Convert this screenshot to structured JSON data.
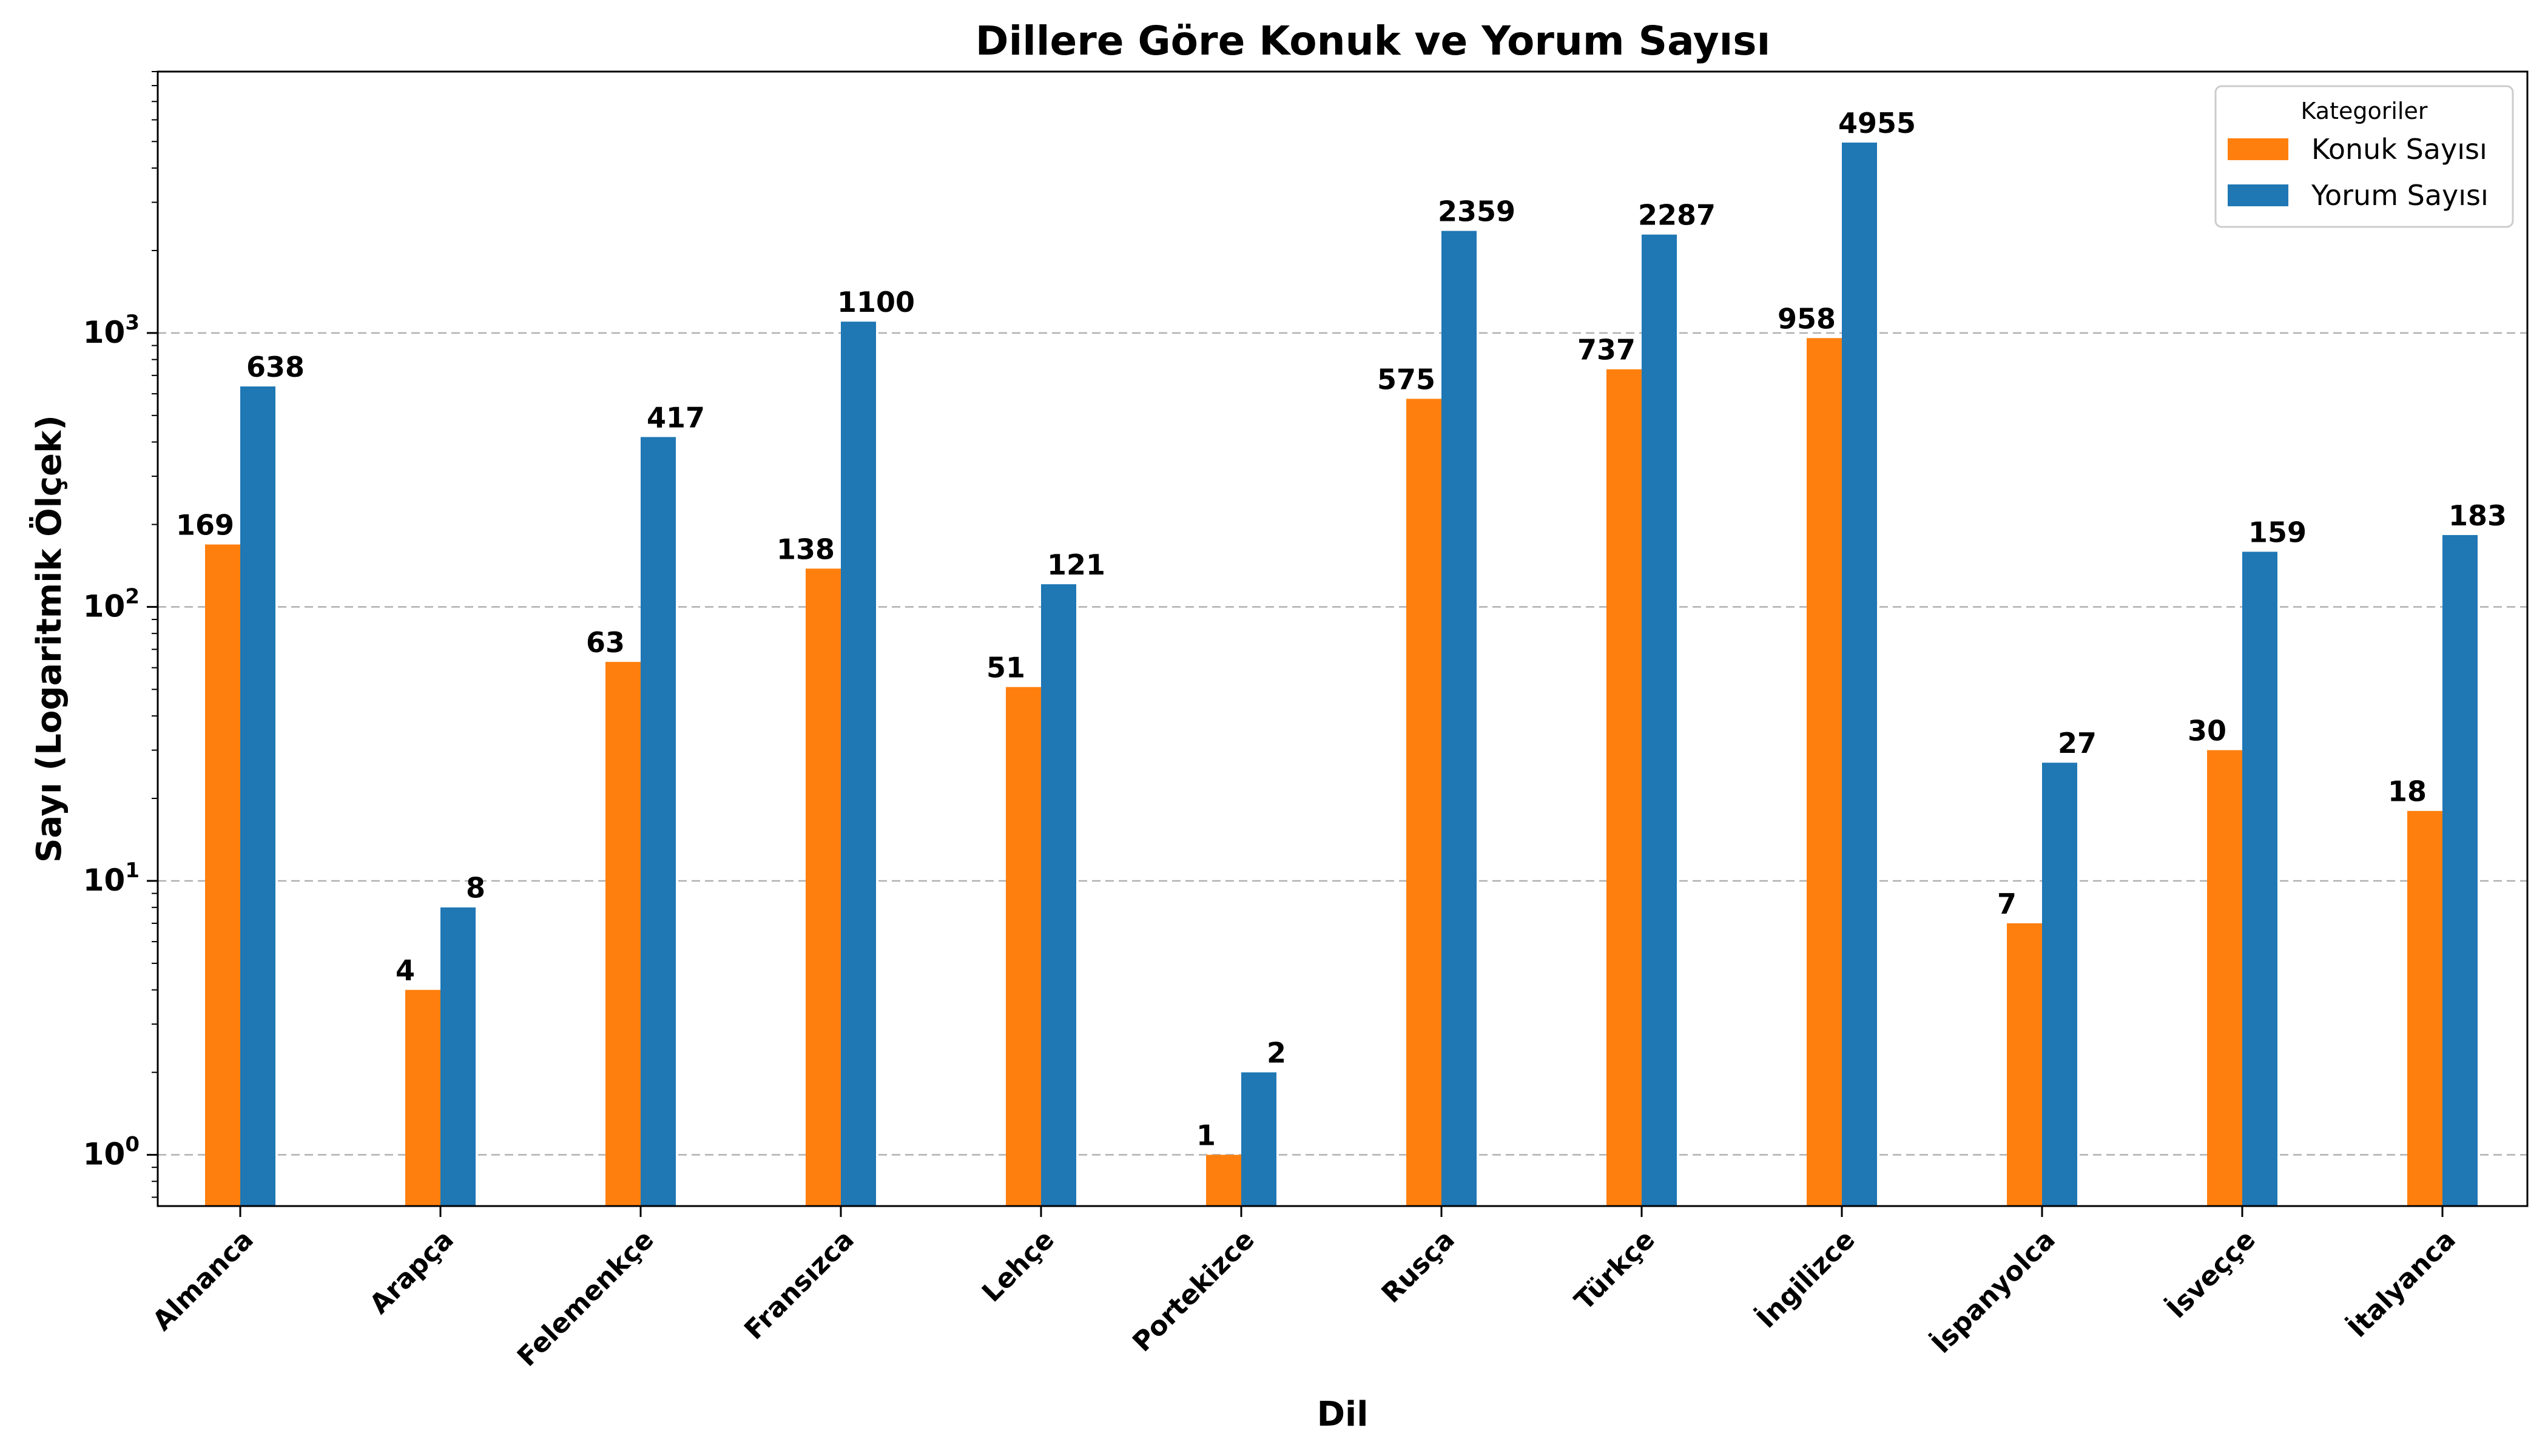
{
  "chart_data": {
    "type": "bar",
    "title": "Dillere Göre Konuk ve Yorum Sayısı",
    "xlabel": "Dil",
    "ylabel": "Sayı (Logaritmik Ölçek)",
    "yscale": "log",
    "ylim": [
      0.65,
      9000
    ],
    "grid": "y-dashed",
    "legend": {
      "title": "Kategoriler",
      "placement": "top-right"
    },
    "categories": [
      "Almanca",
      "Arapça",
      "Felemenkçe",
      "Fransızca",
      "Lehçe",
      "Portekizce",
      "Rusça",
      "Türkçe",
      "İngilizce",
      "İspanyolca",
      "İsveççe",
      "İtalyanca"
    ],
    "series": [
      {
        "name": "Konuk Sayısı",
        "color": "#ff7f0e",
        "values": [
          169,
          4,
          63,
          138,
          51,
          1,
          575,
          737,
          958,
          7,
          30,
          18
        ]
      },
      {
        "name": "Yorum Sayısı",
        "color": "#1f77b4",
        "values": [
          638,
          8,
          417,
          1100,
          121,
          2,
          2359,
          2287,
          4955,
          27,
          159,
          183
        ]
      }
    ],
    "yticks": [
      {
        "value": 1,
        "base": "10",
        "exp": "0"
      },
      {
        "value": 10,
        "base": "10",
        "exp": "1"
      },
      {
        "value": 100,
        "base": "10",
        "exp": "2"
      },
      {
        "value": 1000,
        "base": "10",
        "exp": "3"
      }
    ]
  }
}
